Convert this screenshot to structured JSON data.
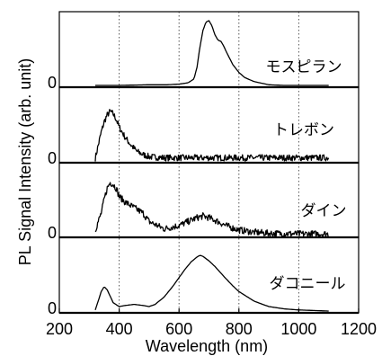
{
  "chart_data": {
    "type": "line",
    "xlabel": "Wavelength (nm)",
    "ylabel": "PL Signal Intensity (arb. unit)",
    "xlim": [
      200,
      1200
    ],
    "x_ticks": [
      "200",
      "400",
      "600",
      "800",
      "1000",
      "1200"
    ],
    "gridlines_x": [
      400,
      600,
      800,
      1000
    ],
    "grid": "vertical dotted",
    "zero_label": "0",
    "panels": [
      {
        "name": "モスピラン",
        "x": [
          320,
          400,
          500,
          560,
          600,
          630,
          650,
          660,
          670,
          680,
          690,
          700,
          710,
          720,
          730,
          740,
          750,
          760,
          780,
          800,
          820,
          850,
          880,
          900,
          950,
          1000,
          1100
        ],
        "y": [
          0,
          0,
          0.01,
          0.01,
          0.02,
          0.04,
          0.1,
          0.28,
          0.6,
          0.85,
          0.98,
          1.0,
          0.92,
          0.78,
          0.7,
          0.68,
          0.6,
          0.5,
          0.32,
          0.2,
          0.12,
          0.06,
          0.03,
          0.01,
          0,
          0,
          0
        ]
      },
      {
        "name": "トレボン",
        "noisy": true,
        "x": [
          320,
          330,
          340,
          350,
          360,
          370,
          380,
          390,
          400,
          420,
          440,
          460,
          480,
          500,
          550,
          600,
          700,
          800,
          900,
          1000,
          1100
        ],
        "y": [
          0.05,
          0.3,
          0.55,
          0.75,
          0.88,
          0.95,
          0.9,
          0.8,
          0.65,
          0.45,
          0.3,
          0.18,
          0.12,
          0.08,
          0.06,
          0.06,
          0.06,
          0.06,
          0.06,
          0.06,
          0.06
        ]
      },
      {
        "name": "ダイン",
        "noisy": true,
        "x": [
          320,
          340,
          350,
          360,
          370,
          380,
          390,
          400,
          420,
          450,
          480,
          500,
          550,
          600,
          630,
          660,
          680,
          700,
          730,
          760,
          800,
          850,
          900,
          1000,
          1100
        ],
        "y": [
          0.1,
          0.4,
          0.65,
          0.85,
          0.95,
          0.92,
          0.85,
          0.7,
          0.6,
          0.5,
          0.4,
          0.25,
          0.12,
          0.18,
          0.25,
          0.32,
          0.35,
          0.32,
          0.25,
          0.17,
          0.1,
          0.06,
          0.04,
          0.03,
          0.03
        ]
      },
      {
        "name": "ダコニール",
        "x": [
          320,
          330,
          340,
          350,
          360,
          380,
          400,
          420,
          450,
          480,
          500,
          520,
          550,
          580,
          600,
          620,
          640,
          660,
          670,
          680,
          700,
          720,
          750,
          780,
          800,
          850,
          900,
          950,
          1000,
          1050,
          1100
        ],
        "y": [
          0.02,
          0.18,
          0.35,
          0.44,
          0.38,
          0.15,
          0.08,
          0.1,
          0.12,
          0.1,
          0.08,
          0.12,
          0.25,
          0.45,
          0.6,
          0.75,
          0.88,
          0.97,
          1.0,
          0.98,
          0.9,
          0.8,
          0.62,
          0.45,
          0.35,
          0.18,
          0.08,
          0.04,
          0.02,
          0.01,
          0
        ]
      }
    ]
  }
}
